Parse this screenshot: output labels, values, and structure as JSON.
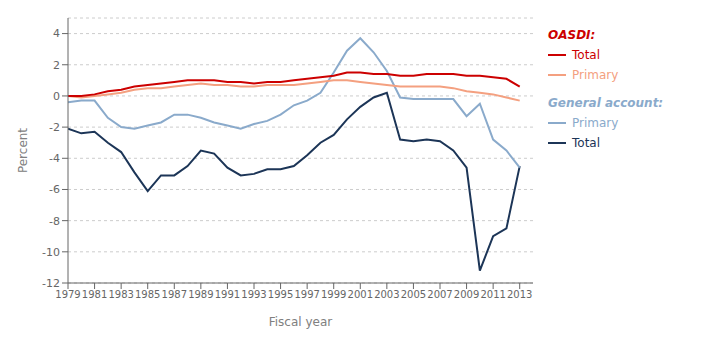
{
  "chart_data": {
    "type": "line",
    "xlabel": "Fiscal year",
    "ylabel": "Percent",
    "x": [
      1979,
      1980,
      1981,
      1982,
      1983,
      1984,
      1985,
      1986,
      1987,
      1988,
      1989,
      1990,
      1991,
      1992,
      1993,
      1994,
      1995,
      1996,
      1997,
      1998,
      1999,
      2000,
      2001,
      2002,
      2003,
      2004,
      2005,
      2006,
      2007,
      2008,
      2009,
      2010,
      2011,
      2012,
      2013
    ],
    "series": [
      {
        "name": "Total",
        "group": "OASDI:",
        "color": "#cc0000",
        "values": [
          0.0,
          0.0,
          0.1,
          0.3,
          0.4,
          0.6,
          0.7,
          0.8,
          0.9,
          1.0,
          1.0,
          1.0,
          0.9,
          0.9,
          0.8,
          0.9,
          0.9,
          1.0,
          1.1,
          1.2,
          1.3,
          1.5,
          1.5,
          1.4,
          1.4,
          1.3,
          1.3,
          1.4,
          1.4,
          1.4,
          1.3,
          1.3,
          1.2,
          1.1,
          0.6
        ]
      },
      {
        "name": "Primary",
        "group": "OASDI:",
        "color": "#f4a080",
        "values": [
          0.0,
          -0.1,
          0.0,
          0.1,
          0.2,
          0.4,
          0.5,
          0.5,
          0.6,
          0.7,
          0.8,
          0.7,
          0.7,
          0.6,
          0.6,
          0.7,
          0.7,
          0.7,
          0.8,
          0.9,
          1.0,
          1.0,
          0.9,
          0.8,
          0.7,
          0.6,
          0.6,
          0.6,
          0.6,
          0.5,
          0.3,
          0.2,
          0.1,
          -0.1,
          -0.3
        ]
      },
      {
        "name": "Primary",
        "group": "General account:",
        "color": "#8aaacb",
        "values": [
          -0.4,
          -0.3,
          -0.3,
          -1.4,
          -2.0,
          -2.1,
          -1.9,
          -1.7,
          -1.2,
          -1.2,
          -1.4,
          -1.7,
          -1.9,
          -2.1,
          -1.8,
          -1.6,
          -1.2,
          -0.6,
          -0.3,
          0.2,
          1.5,
          2.9,
          3.7,
          2.8,
          1.6,
          -0.1,
          -0.2,
          -0.2,
          -0.2,
          -0.2,
          -1.3,
          -0.5,
          -2.8,
          -3.5,
          -4.6
        ]
      },
      {
        "name": "Total",
        "group": "General account:",
        "color": "#1c3557",
        "values": [
          -2.1,
          -2.4,
          -2.3,
          -3.0,
          -3.6,
          -4.9,
          -6.1,
          -5.1,
          -5.1,
          -4.5,
          -3.5,
          -3.7,
          -4.6,
          -5.1,
          -5.0,
          -4.7,
          -4.7,
          -4.5,
          -3.8,
          -3.0,
          -2.5,
          -1.5,
          -0.7,
          -0.1,
          0.2,
          -2.8,
          -2.9,
          -2.8,
          -2.9,
          -3.5,
          -4.6,
          -11.2,
          -9.0,
          -8.5,
          -4.5
        ]
      }
    ],
    "xlim": [
      1979,
      2014
    ],
    "xticks": [
      1979,
      1981,
      1983,
      1985,
      1987,
      1989,
      1991,
      1993,
      1995,
      1997,
      1999,
      2001,
      2003,
      2005,
      2007,
      2009,
      2011,
      2013
    ],
    "ylim": [
      -12,
      5
    ],
    "yticks": [
      -12,
      -10,
      -8,
      -6,
      -4,
      -2,
      0,
      2,
      4
    ],
    "grid": true
  }
}
